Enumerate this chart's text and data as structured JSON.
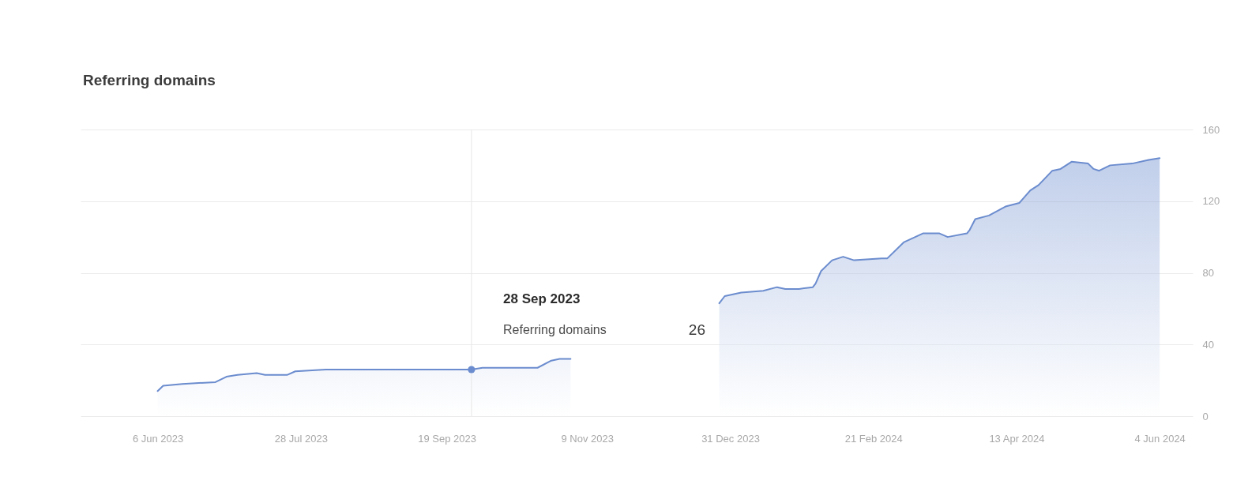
{
  "chart_data": {
    "type": "area",
    "title": "Referring domains",
    "x": [
      "2023-06-06",
      "2023-06-08",
      "2023-06-15",
      "2023-06-27",
      "2023-07-01",
      "2023-07-05",
      "2023-07-12",
      "2023-07-15",
      "2023-07-23",
      "2023-07-26",
      "2023-08-06",
      "2023-09-28",
      "2023-10-02",
      "2023-10-22",
      "2023-10-27",
      "2023-10-30",
      "2023-11-03",
      "2023-12-01",
      "2023-12-27",
      "2023-12-29",
      "2024-01-04",
      "2024-01-12",
      "2024-01-17",
      "2024-01-20",
      "2024-01-25",
      "2024-01-30",
      "2024-01-31",
      "2024-02-02",
      "2024-02-06",
      "2024-02-10",
      "2024-02-12",
      "2024-02-14",
      "2024-02-24",
      "2024-02-26",
      "2024-03-03",
      "2024-03-10",
      "2024-03-16",
      "2024-03-19",
      "2024-03-26",
      "2024-03-27",
      "2024-03-29",
      "2024-04-03",
      "2024-04-09",
      "2024-04-14",
      "2024-04-18",
      "2024-04-21",
      "2024-04-26",
      "2024-04-29",
      "2024-05-03",
      "2024-05-09",
      "2024-05-11",
      "2024-05-13",
      "2024-05-17",
      "2024-05-25",
      "2024-05-31",
      "2024-06-04"
    ],
    "series": [
      {
        "color": "#6b8cce",
        "values": [
          14,
          17,
          18,
          19,
          22,
          23,
          24,
          23,
          23,
          25,
          26,
          26,
          27,
          27,
          31,
          32,
          32,
          null,
          63,
          67,
          69,
          70,
          72,
          71,
          71,
          72,
          74,
          81,
          87,
          89,
          88,
          87,
          88,
          88,
          97,
          102,
          102,
          100,
          102,
          104,
          110,
          112,
          117,
          119,
          126,
          129,
          137,
          138,
          142,
          141,
          138,
          137,
          140,
          141,
          143,
          144
        ]
      },
      {
        "type": "scatter",
        "marker": "circle",
        "color": "#6b8cce",
        "x": [
          "2023-09-28"
        ],
        "values": [
          26
        ]
      }
    ],
    "xlim": [
      "2023-05-09",
      "2024-06-16"
    ],
    "xticks": [
      {
        "value": "2023-06-06",
        "label": "6 Jun 2023"
      },
      {
        "value": "2023-07-28",
        "label": "28 Jul 2023"
      },
      {
        "value": "2023-09-19",
        "label": "19 Sep 2023"
      },
      {
        "value": "2023-11-09",
        "label": "9 Nov 2023"
      },
      {
        "value": "2023-12-31",
        "label": "31 Dec 2023"
      },
      {
        "value": "2024-02-21",
        "label": "21 Feb 2024"
      },
      {
        "value": "2024-04-13",
        "label": "13 Apr 2024"
      },
      {
        "value": "2024-06-04",
        "label": "4 Jun 2024"
      }
    ],
    "ylim": [
      0,
      160
    ],
    "yticks": [
      0,
      40,
      80,
      120,
      160
    ],
    "grid": "y",
    "ref_lines": [
      {
        "axis": "x",
        "value": "2023-09-28",
        "color": "#e6e6e6"
      }
    ],
    "annotations": [
      "28 Sep 2023",
      "Referring domains",
      "26"
    ]
  }
}
